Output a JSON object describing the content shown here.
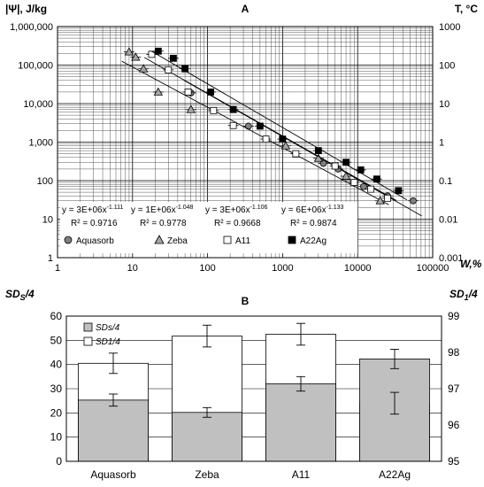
{
  "chart_data": [
    {
      "type": "scatter",
      "panel_label": "A",
      "ylabel": "|Ψ|, J/kg",
      "ylabel_right": "T, °C",
      "xlabel": "W,%",
      "xscale": "log",
      "yscale": "log",
      "xlim": [
        1,
        100000
      ],
      "ylim": [
        1,
        1000000
      ],
      "ylim_right": [
        0.001,
        1000
      ],
      "x_tick_labels": [
        "1",
        "10",
        "100",
        "1000",
        "10000",
        "100000"
      ],
      "y_tick_labels": [
        "1",
        "10",
        "100",
        "1,000",
        "10,000",
        "100,000",
        "1,000,000"
      ],
      "y_right_tick_labels": [
        "0.001",
        "0.01",
        "0.1",
        "1",
        "10",
        "100",
        "1000"
      ],
      "grid": true,
      "legend_position": "bottom-left",
      "series": [
        {
          "name": "Aquasorb",
          "marker": "circle",
          "color": "#808080",
          "points": [
            [
              60,
              19000
            ],
            [
              350,
              2600
            ],
            [
              3500,
              280
            ],
            [
              5500,
              200
            ],
            [
              12000,
              70
            ],
            [
              25000,
              40
            ],
            [
              55000,
              30
            ]
          ],
          "fit": {
            "a": 3000000,
            "b": -1.111
          },
          "equation": "y = 3E+06x-1.111",
          "r2": "R² = 0.9716"
        },
        {
          "name": "Zeba",
          "marker": "triangle",
          "color": "#a6a6a6",
          "points": [
            [
              9,
              220000
            ],
            [
              11,
              160000
            ],
            [
              14,
              80000
            ],
            [
              22,
              20000
            ],
            [
              60,
              7000
            ],
            [
              1100,
              800
            ],
            [
              3000,
              380
            ],
            [
              7000,
              130
            ],
            [
              20000,
              30
            ]
          ],
          "fit": {
            "a": 1000000,
            "b": -1.048
          },
          "equation": "y = 1E+06x-1.048",
          "r2": "R² = 0.9778"
        },
        {
          "name": "A11",
          "marker": "square",
          "color": "#ffffff",
          "points": [
            [
              18,
              190000
            ],
            [
              30,
              75000
            ],
            [
              55,
              20000
            ],
            [
              120,
              6600
            ],
            [
              220,
              2700
            ],
            [
              600,
              1200
            ],
            [
              1500,
              500
            ],
            [
              5000,
              240
            ],
            [
              9000,
              90
            ],
            [
              15000,
              60
            ],
            [
              25000,
              35
            ]
          ],
          "fit": {
            "a": 3000000,
            "b": -1.106
          },
          "equation": "y = 3E+06x-1.106",
          "r2": "R² = 0.9668"
        },
        {
          "name": "A22Ag",
          "marker": "square",
          "color": "#000000",
          "points": [
            [
              22,
              230000
            ],
            [
              35,
              150000
            ],
            [
              50,
              80000
            ],
            [
              110,
              20000
            ],
            [
              220,
              7000
            ],
            [
              500,
              2600
            ],
            [
              1000,
              1200
            ],
            [
              3000,
              600
            ],
            [
              7000,
              300
            ],
            [
              11000,
              190
            ],
            [
              18000,
              110
            ],
            [
              35000,
              55
            ]
          ],
          "fit": {
            "a": 6000000,
            "b": -1.133
          },
          "equation": "y = 6E+06x-1.133",
          "r2": "R² = 0.9874"
        }
      ]
    },
    {
      "type": "bar",
      "panel_label": "B",
      "ylabel": "SDS/4",
      "ylabel_right": "SD1/4",
      "categories": [
        "Aquasorb",
        "Zeba",
        "A11",
        "A22Ag"
      ],
      "ylim": [
        0,
        60
      ],
      "ylim_right": [
        95,
        99
      ],
      "y_tick_labels": [
        "0",
        "10",
        "20",
        "30",
        "40",
        "50",
        "60"
      ],
      "y_right_tick_labels": [
        "95",
        "96",
        "97",
        "98",
        "99"
      ],
      "legend_position": "top-left",
      "series": [
        {
          "name": "SDs/4",
          "axis": "left",
          "color": "#c0c0c0",
          "values": [
            25.3,
            20.2,
            32.0,
            42.3
          ],
          "errors": [
            2.5,
            2.0,
            3.0,
            4.0
          ]
        },
        {
          "name": "SD1/4",
          "axis": "right",
          "color": "#ffffff",
          "values": [
            97.7,
            98.45,
            98.5,
            96.6
          ],
          "errors": [
            0.28,
            0.3,
            0.3,
            0.3
          ]
        }
      ]
    }
  ]
}
